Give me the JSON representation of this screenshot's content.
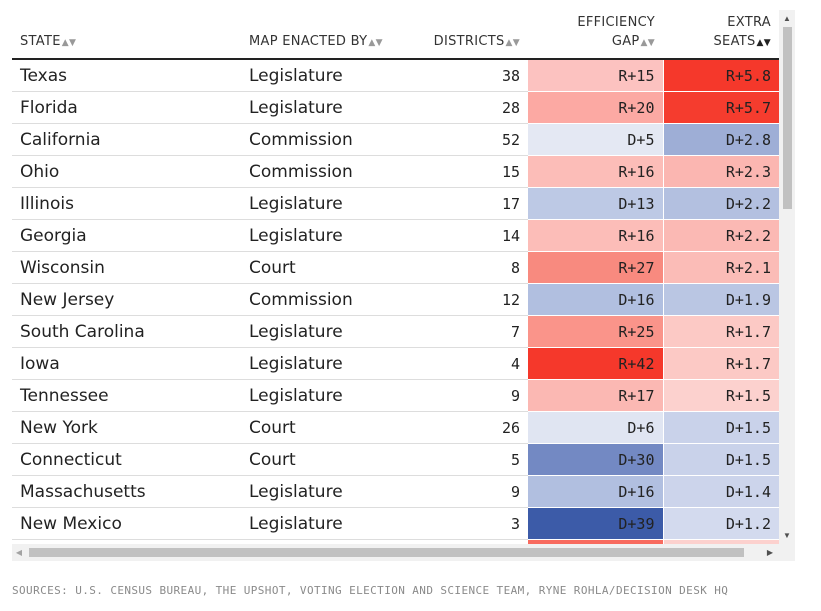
{
  "columns": {
    "state": "STATE",
    "map_enacted_by": "MAP ENACTED BY",
    "districts": "DISTRICTS",
    "efficiency_gap_line1": "EFFICIENCY",
    "efficiency_gap_line2": "GAP",
    "extra_seats_line1": "EXTRA",
    "extra_seats_line2": "SEATS"
  },
  "sort_icons": {
    "state": "sort-icon",
    "map_enacted_by": "sort-icon",
    "districts": "sort-icon",
    "efficiency_gap": "sort-icon",
    "extra_seats": "sort-down-icon (active)"
  },
  "colors": {
    "republican_strong": "#f5382b",
    "democrat_strong": "#3c5ba8",
    "neutral": "#ffffff"
  },
  "rows": [
    {
      "state": "Texas",
      "enacted_by": "Legislature",
      "districts": "38",
      "gap": "R+15",
      "seats": "R+5.8",
      "gap_bg": "#fcc2c0",
      "seats_bg": "#f5382b"
    },
    {
      "state": "Florida",
      "enacted_by": "Legislature",
      "districts": "28",
      "gap": "R+20",
      "seats": "R+5.7",
      "gap_bg": "#fca9a3",
      "seats_bg": "#f53c2e"
    },
    {
      "state": "California",
      "enacted_by": "Commission",
      "districts": "52",
      "gap": "D+5",
      "seats": "D+2.8",
      "gap_bg": "#e4e8f3",
      "seats_bg": "#9eaed6"
    },
    {
      "state": "Ohio",
      "enacted_by": "Commission",
      "districts": "15",
      "gap": "R+16",
      "seats": "R+2.3",
      "gap_bg": "#fcbdb8",
      "seats_bg": "#fbb6b1"
    },
    {
      "state": "Illinois",
      "enacted_by": "Legislature",
      "districts": "17",
      "gap": "D+13",
      "seats": "D+2.2",
      "gap_bg": "#bdc9e5",
      "seats_bg": "#b3c0e0"
    },
    {
      "state": "Georgia",
      "enacted_by": "Legislature",
      "districts": "14",
      "gap": "R+16",
      "seats": "R+2.2",
      "gap_bg": "#fcbdb8",
      "seats_bg": "#fbb9b4"
    },
    {
      "state": "Wisconsin",
      "enacted_by": "Court",
      "districts": "8",
      "gap": "R+27",
      "seats": "R+2.1",
      "gap_bg": "#f88a7f",
      "seats_bg": "#fbbcb7"
    },
    {
      "state": "New Jersey",
      "enacted_by": "Commission",
      "districts": "12",
      "gap": "D+16",
      "seats": "D+1.9",
      "gap_bg": "#b1bfe0",
      "seats_bg": "#bac6e3"
    },
    {
      "state": "South Carolina",
      "enacted_by": "Legislature",
      "districts": "7",
      "gap": "R+25",
      "seats": "R+1.7",
      "gap_bg": "#fa948a",
      "seats_bg": "#fcc9c5"
    },
    {
      "state": "Iowa",
      "enacted_by": "Legislature",
      "districts": "4",
      "gap": "R+42",
      "seats": "R+1.7",
      "gap_bg": "#f5382b",
      "seats_bg": "#fcc9c5"
    },
    {
      "state": "Tennessee",
      "enacted_by": "Legislature",
      "districts": "9",
      "gap": "R+17",
      "seats": "R+1.5",
      "gap_bg": "#fbb8b3",
      "seats_bg": "#fcd1ce"
    },
    {
      "state": "New York",
      "enacted_by": "Court",
      "districts": "26",
      "gap": "D+6",
      "seats": "D+1.5",
      "gap_bg": "#e0e5f2",
      "seats_bg": "#c9d2ea"
    },
    {
      "state": "Connecticut",
      "enacted_by": "Court",
      "districts": "5",
      "gap": "D+30",
      "seats": "D+1.5",
      "gap_bg": "#7389c3",
      "seats_bg": "#c9d2ea"
    },
    {
      "state": "Massachusetts",
      "enacted_by": "Legislature",
      "districts": "9",
      "gap": "D+16",
      "seats": "D+1.4",
      "gap_bg": "#b1bfe0",
      "seats_bg": "#ccd4eb"
    },
    {
      "state": "New Mexico",
      "enacted_by": "Legislature",
      "districts": "3",
      "gap": "D+39",
      "seats": "D+1.2",
      "gap_bg": "#3c5ba8",
      "seats_bg": "#d3daee"
    },
    {
      "state": "",
      "enacted_by": "",
      "districts": "",
      "gap": "",
      "seats": "",
      "gap_bg": "#f86b5f",
      "seats_bg": "#fcd1ce"
    }
  ],
  "footer": {
    "sources": "SOURCES: U.S. CENSUS BUREAU, THE UPSHOT, VOTING ELECTION AND SCIENCE TEAM, RYNE ROHLA/DECISION DESK HQ"
  }
}
